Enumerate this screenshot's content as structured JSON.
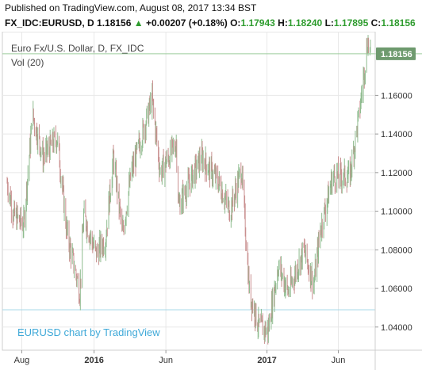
{
  "header": {
    "published": "Published on TradingView.com, August 08, 2017 13:34 BST",
    "symbol": "FX_IDC:EURUSD, D",
    "last": "1.18156",
    "change_arrow": "▲",
    "change": "+0.00207 (+0.18%)",
    "o_label": "O:",
    "o_value": "1.17943",
    "h_label": "H:",
    "h_value": "1.18240",
    "l_label": "L:",
    "l_value": "1.17895",
    "c_label": "C:",
    "c_value": "1.18156"
  },
  "legend": {
    "line1": "Euro Fx/U.S. Dollar, D, FX_IDC",
    "line2": "Vol (20)"
  },
  "watermark": "EURUSD chart by TradingView",
  "colors": {
    "up": "#2e9c2e",
    "candle_up": "#8fbc8f",
    "candle_down": "#c98f8f",
    "price_tag": "#6e9a6e",
    "last_line": "#9ccc9c",
    "volume_line": "#a8d8e8",
    "grid": "#e8e8e8"
  },
  "chart_data": {
    "type": "candlestick",
    "title": "Euro Fx/U.S. Dollar, D, FX_IDC",
    "x_ticks": [
      "Aug",
      "2016",
      "Jun",
      "2017",
      "Jun"
    ],
    "x_ticks_bold": [
      "2016",
      "2017"
    ],
    "y_ticks": [
      "1.16000",
      "1.14000",
      "1.12000",
      "1.10000",
      "1.08000",
      "1.06000",
      "1.04000"
    ],
    "ylim": [
      1.028,
      1.193
    ],
    "last_price": 1.18156,
    "last_price_label": "1.18156",
    "x_range": [
      "2015-07-01",
      "2017-08-08"
    ],
    "x_tick_dates": [
      "2015-08-01",
      "2016-01-01",
      "2016-06-01",
      "2017-01-01",
      "2017-06-01"
    ],
    "price_path": [
      [
        "2015-07-01",
        1.115
      ],
      [
        "2015-07-15",
        1.098
      ],
      [
        "2015-08-05",
        1.093
      ],
      [
        "2015-08-24",
        1.15
      ],
      [
        "2015-09-15",
        1.128
      ],
      [
        "2015-10-15",
        1.138
      ],
      [
        "2015-11-05",
        1.088
      ],
      [
        "2015-12-02",
        1.058
      ],
      [
        "2015-12-10",
        1.098
      ],
      [
        "2016-01-05",
        1.078
      ],
      [
        "2016-01-25",
        1.085
      ],
      [
        "2016-02-11",
        1.128
      ],
      [
        "2016-03-01",
        1.088
      ],
      [
        "2016-03-20",
        1.12
      ],
      [
        "2016-05-03",
        1.158
      ],
      [
        "2016-05-20",
        1.12
      ],
      [
        "2016-06-23",
        1.135
      ],
      [
        "2016-06-28",
        1.103
      ],
      [
        "2016-08-15",
        1.128
      ],
      [
        "2016-09-20",
        1.115
      ],
      [
        "2016-10-15",
        1.1
      ],
      [
        "2016-11-08",
        1.122
      ],
      [
        "2016-11-25",
        1.058
      ],
      [
        "2016-12-15",
        1.04
      ],
      [
        "2017-01-03",
        1.038
      ],
      [
        "2017-01-25",
        1.072
      ],
      [
        "2017-02-15",
        1.058
      ],
      [
        "2017-03-20",
        1.08
      ],
      [
        "2017-04-10",
        1.062
      ],
      [
        "2017-04-24",
        1.09
      ],
      [
        "2017-05-20",
        1.118
      ],
      [
        "2017-06-25",
        1.118
      ],
      [
        "2017-07-15",
        1.15
      ],
      [
        "2017-08-02",
        1.188
      ],
      [
        "2017-08-08",
        1.18156
      ]
    ],
    "volume_level": "flat"
  }
}
